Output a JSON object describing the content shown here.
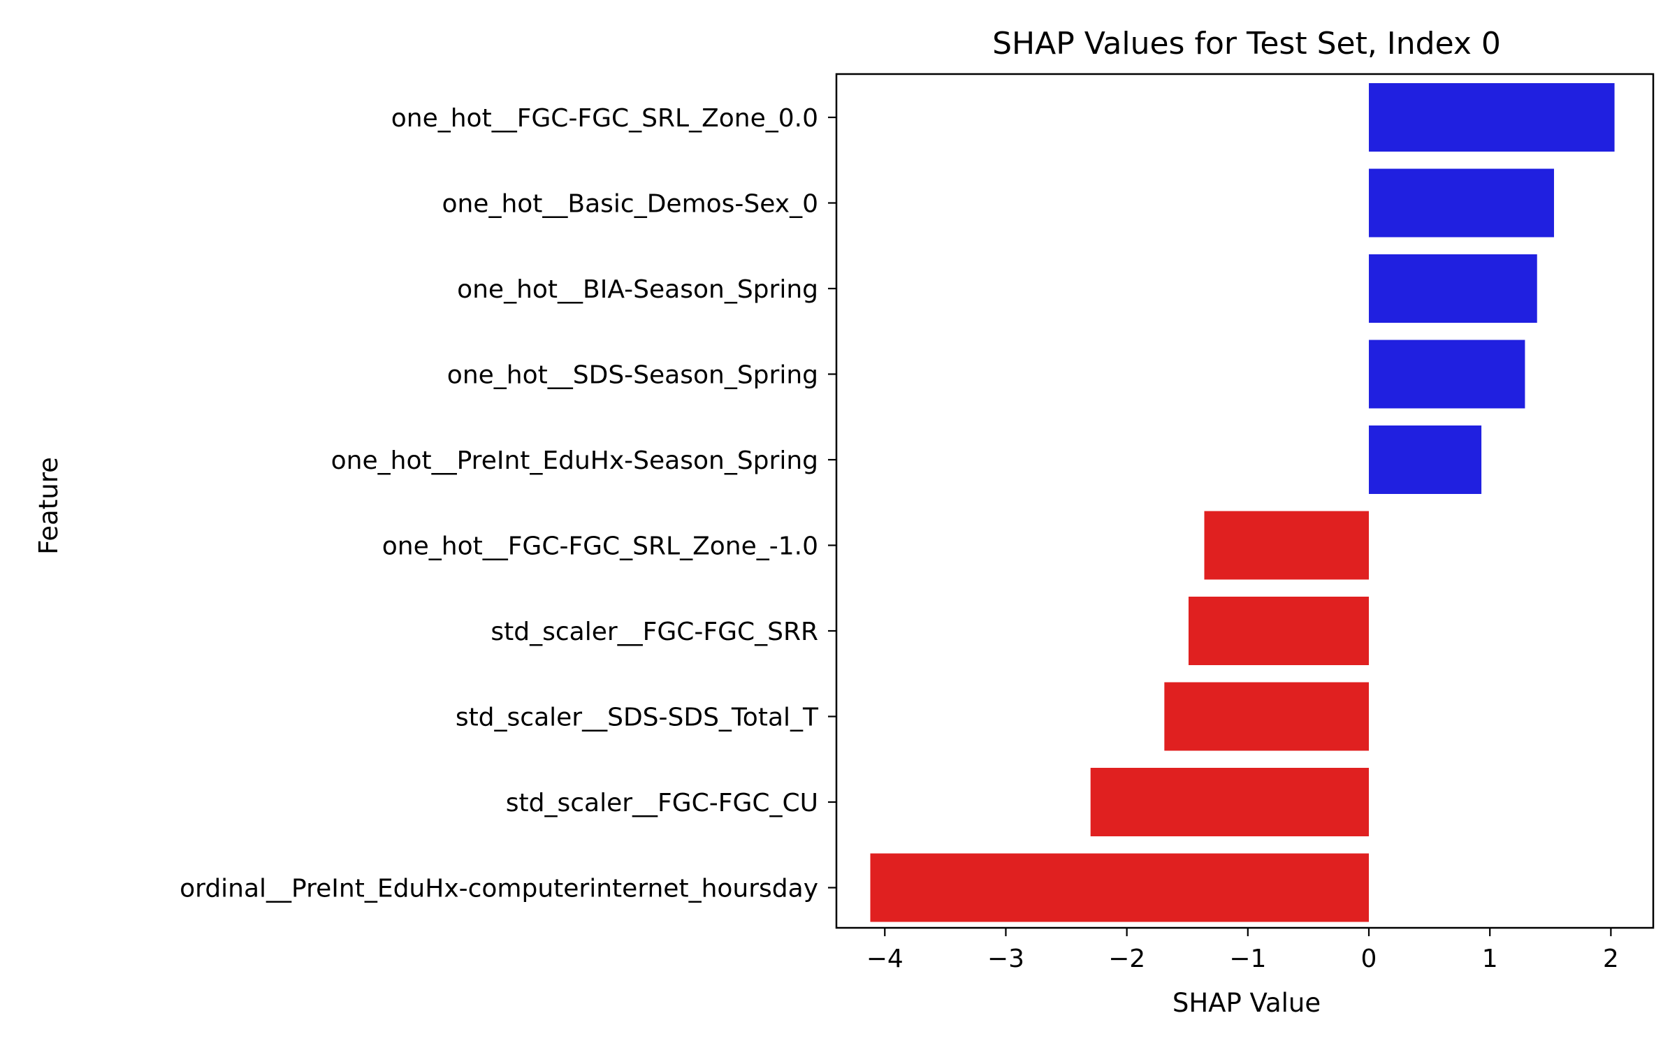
{
  "chart_data": {
    "type": "bar",
    "orientation": "horizontal",
    "title": "SHAP Values for Test Set, Index 0",
    "xlabel": "SHAP Value",
    "ylabel": "Feature",
    "xlim": [
      -4.4,
      2.35
    ],
    "xticks": [
      {
        "value": -4,
        "label": "−4"
      },
      {
        "value": -3,
        "label": "−3"
      },
      {
        "value": -2,
        "label": "−2"
      },
      {
        "value": -1,
        "label": "−1"
      },
      {
        "value": 0,
        "label": "0"
      },
      {
        "value": 1,
        "label": "1"
      },
      {
        "value": 2,
        "label": "2"
      }
    ],
    "categories": [
      "one_hot__FGC-FGC_SRL_Zone_0.0",
      "one_hot__Basic_Demos-Sex_0",
      "one_hot__BIA-Season_Spring",
      "one_hot__SDS-Season_Spring",
      "one_hot__PreInt_EduHx-Season_Spring",
      "one_hot__FGC-FGC_SRL_Zone_-1.0",
      "std_scaler__FGC-FGC_SRR",
      "std_scaler__SDS-SDS_Total_T",
      "std_scaler__FGC-FGC_CU",
      "ordinal__PreInt_EduHx-computerinternet_hoursday"
    ],
    "values": [
      2.03,
      1.53,
      1.39,
      1.29,
      0.93,
      -1.36,
      -1.49,
      -1.69,
      -2.3,
      -4.12
    ],
    "colors": {
      "positive": "#2020e0",
      "negative": "#e02020"
    },
    "grid": false,
    "legend": "none"
  }
}
